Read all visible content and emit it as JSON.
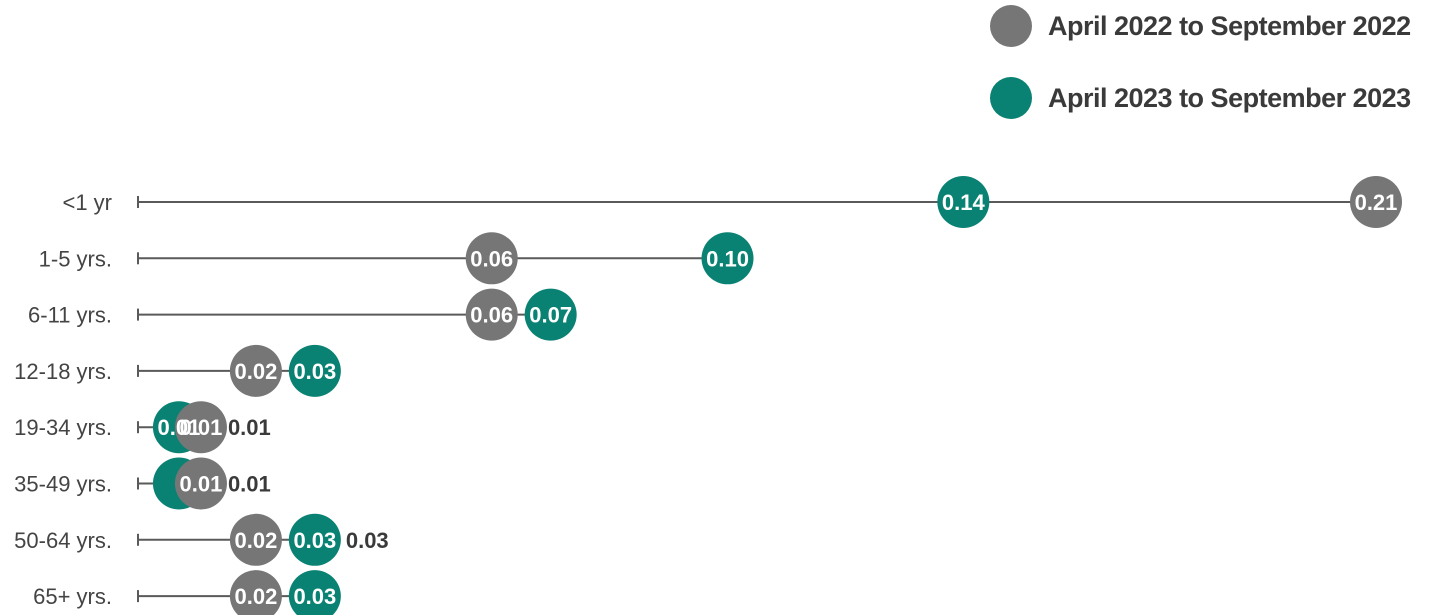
{
  "colors": {
    "series_2022": "#767676",
    "series_2023": "#0a8273",
    "line": "#5a5a5a",
    "text": "#3a3a3a"
  },
  "chart_data": {
    "type": "scatter",
    "subtype": "dumbbell",
    "categories": [
      "<1 yr",
      "1-5 yrs.",
      "6-11 yrs.",
      "12-18 yrs.",
      "19-34 yrs.",
      "35-49 yrs.",
      "50-64 yrs.",
      "65+ yrs."
    ],
    "series": [
      {
        "name": "April 2022 to September 2022",
        "color": "#767676",
        "values": [
          0.21,
          0.06,
          0.06,
          0.02,
          0.01,
          0.01,
          0.02,
          0.02
        ],
        "labels": [
          "0.21",
          "0.06",
          "0.06",
          "0.02",
          "0.01",
          "0.01",
          "0.02",
          "0.02"
        ]
      },
      {
        "name": "April 2023 to September 2023",
        "color": "#0a8273",
        "values": [
          0.14,
          0.1,
          0.07,
          0.03,
          0.01,
          0.01,
          0.03,
          0.03
        ],
        "labels": [
          "0.14",
          "0.10",
          "0.07",
          "0.03",
          "0.01",
          "",
          "0.03",
          "0.03"
        ]
      }
    ],
    "outside_labels": [
      "",
      "",
      "",
      "",
      "0.01",
      "0.01",
      "0.03",
      ""
    ],
    "xlim": [
      0,
      0.21
    ],
    "legend": "top-right",
    "grid": false
  }
}
